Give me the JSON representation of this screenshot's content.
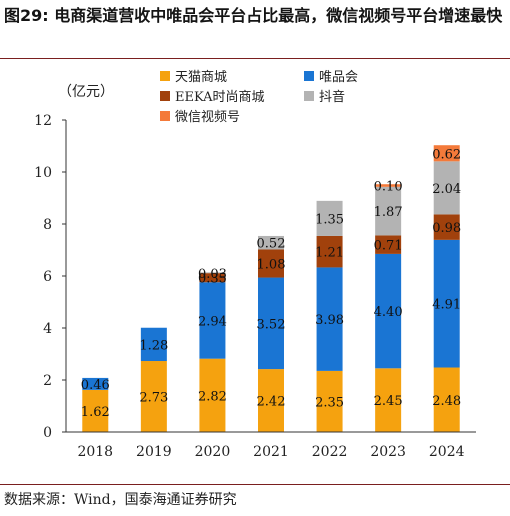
{
  "title": "图29:   电商渠道营收中唯品会平台占比最高，微信视频号平台增速最快",
  "source": "数据来源：Wind，国泰海通证券研究",
  "chart_data": {
    "type": "bar",
    "stacked": true,
    "unit": "（亿元）",
    "categories": [
      "2018",
      "2019",
      "2020",
      "2021",
      "2022",
      "2023",
      "2024"
    ],
    "ylim": [
      0,
      12
    ],
    "yticks": [
      0,
      2,
      4,
      6,
      8,
      10,
      12
    ],
    "legend_position": "top",
    "series": [
      {
        "name": "天猫商城",
        "color": "#F5A20F",
        "values": [
          1.62,
          2.73,
          2.82,
          2.42,
          2.35,
          2.45,
          2.48
        ]
      },
      {
        "name": "唯品会",
        "color": "#1A75D3",
        "values": [
          0.46,
          1.28,
          2.94,
          3.52,
          3.98,
          4.4,
          4.91
        ]
      },
      {
        "name": "EEKA时尚商城",
        "color": "#A1410C",
        "values": [
          null,
          null,
          0.35,
          1.08,
          1.21,
          0.71,
          0.98
        ]
      },
      {
        "name": "抖音",
        "color": "#B3B3B3",
        "values": [
          null,
          null,
          0.03,
          0.52,
          1.35,
          1.87,
          2.04
        ]
      },
      {
        "name": "微信视频号",
        "color": "#F47A3A",
        "values": [
          null,
          null,
          null,
          null,
          null,
          0.1,
          0.62
        ]
      }
    ]
  }
}
